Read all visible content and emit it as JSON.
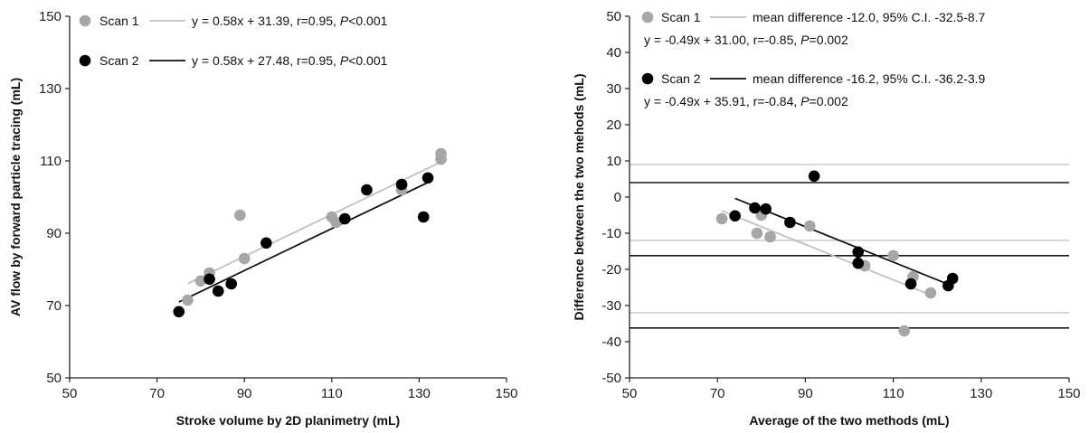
{
  "colors": {
    "scan1": "#a6a6a6",
    "scan2": "#000000",
    "axis": "#222222"
  },
  "chart_data": [
    {
      "type": "scatter",
      "title": "",
      "xlabel": "Stroke volume by 2D planimetry (mL)",
      "ylabel": "AV flow by forward particle tracing (mL)",
      "xlim": [
        50,
        150
      ],
      "ylim": [
        50,
        150
      ],
      "xticks": [
        50,
        70,
        90,
        110,
        130,
        150
      ],
      "yticks": [
        50,
        70,
        90,
        110,
        130,
        150
      ],
      "grid": false,
      "legend_placement": "top",
      "series": [
        {
          "name": "Scan 1",
          "equation": "y = 0.58x + 31.39, r=0.95, ",
          "p_label": "P",
          "p_value": "<0.001",
          "slope": 0.58,
          "intercept": 31.39,
          "fit_x": [
            77,
            135
          ],
          "points": [
            [
              77,
              71.5
            ],
            [
              80,
              76.8
            ],
            [
              82,
              79
            ],
            [
              89,
              95
            ],
            [
              90,
              83
            ],
            [
              110,
              94.5
            ],
            [
              111,
              93
            ],
            [
              126,
              103
            ],
            [
              126,
              102
            ],
            [
              135,
              112
            ],
            [
              135,
              110.5
            ]
          ]
        },
        {
          "name": "Scan 2",
          "equation": "y = 0.58x + 27.48, r=0.95, ",
          "p_label": "P",
          "p_value": "<0.001",
          "slope": 0.58,
          "intercept": 27.48,
          "fit_x": [
            75,
            133
          ],
          "points": [
            [
              75,
              68.3
            ],
            [
              82,
              77.3
            ],
            [
              84,
              74
            ],
            [
              87,
              76
            ],
            [
              95,
              87.3
            ],
            [
              113,
              94
            ],
            [
              118,
              102
            ],
            [
              126,
              103.5
            ],
            [
              131,
              94.5
            ],
            [
              132,
              105.3
            ]
          ]
        }
      ]
    },
    {
      "type": "scatter",
      "title": "",
      "xlabel": "Average of the two methods (mL)",
      "ylabel": "Difference between the two mehods (mL)",
      "xlim": [
        50,
        150
      ],
      "ylim": [
        -50,
        50
      ],
      "xticks": [
        50,
        70,
        90,
        110,
        130,
        150
      ],
      "yticks": [
        -50,
        -40,
        -30,
        -20,
        -10,
        0,
        10,
        20,
        30,
        40,
        50
      ],
      "grid": false,
      "legend_placement": "top",
      "series": [
        {
          "name": "Scan 1",
          "summary": "mean difference -12.0, 95% C.I. -32.5-8.7",
          "equation": "y = -0.49x + 31.00, r=-0.85, ",
          "p_label": "P",
          "p_value": "=0.002",
          "hlines": [
            9,
            -12,
            -32
          ],
          "slope": -0.49,
          "intercept": 31.0,
          "fit_x": [
            71,
            118.5
          ],
          "points": [
            [
              71,
              -6
            ],
            [
              79,
              -10
            ],
            [
              80,
              -5
            ],
            [
              82,
              -11
            ],
            [
              91,
              -8
            ],
            [
              103.5,
              -19
            ],
            [
              110,
              -16.2
            ],
            [
              114.5,
              -22
            ],
            [
              118.5,
              -26.5
            ],
            [
              112.5,
              -37
            ]
          ]
        },
        {
          "name": "Scan 2",
          "summary": "mean difference -16.2, 95% C.I. -36.2-3.9",
          "equation": "y = -0.49x + 35.91, r=-0.84, ",
          "p_label": "P",
          "p_value": "=0.002",
          "hlines": [
            4,
            -16.2,
            -36.2
          ],
          "slope": -0.49,
          "intercept": 35.91,
          "fit_x": [
            74,
            123.5
          ],
          "points": [
            [
              74,
              -5.2
            ],
            [
              78.5,
              -3
            ],
            [
              81,
              -3.3
            ],
            [
              86.5,
              -7
            ],
            [
              92,
              5.8
            ],
            [
              102,
              -15.2
            ],
            [
              102,
              -18.3
            ],
            [
              114,
              -24
            ],
            [
              122.5,
              -24.5
            ],
            [
              123.5,
              -22.5
            ]
          ]
        }
      ]
    }
  ]
}
